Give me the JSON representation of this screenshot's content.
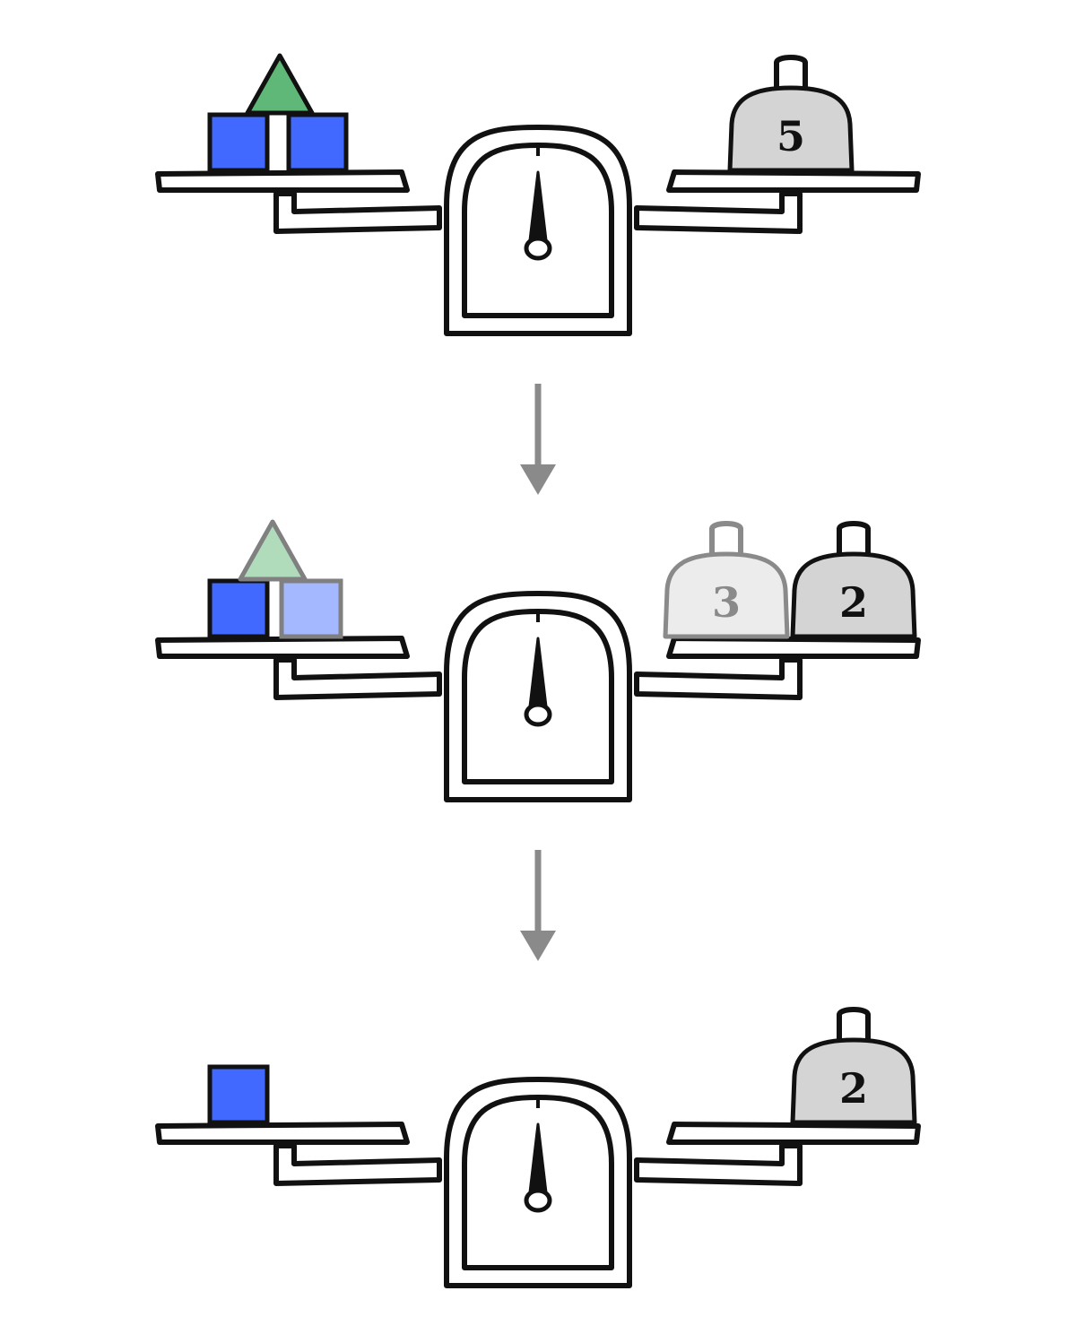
{
  "colors": {
    "block": "#4169ff",
    "block_faded": "#a3b8ff",
    "triangle": "#5fb877",
    "triangle_faded": "#b0dcbc",
    "weight": "#d4d4d4",
    "weight_faded": "#ececec",
    "arrow": "#8a8a8a",
    "ink": "#111111"
  },
  "stages": [
    {
      "left_pan": {
        "blocks": [
          "solid",
          "solid"
        ],
        "triangle": "solid"
      },
      "right_pan": {
        "weights": [
          {
            "label": "5",
            "state": "solid"
          }
        ]
      }
    },
    {
      "left_pan": {
        "blocks": [
          "solid",
          "faded"
        ],
        "triangle": "faded"
      },
      "right_pan": {
        "weights": [
          {
            "label": "3",
            "state": "faded"
          },
          {
            "label": "2",
            "state": "solid"
          }
        ]
      }
    },
    {
      "left_pan": {
        "blocks": [
          "solid"
        ],
        "triangle": "none"
      },
      "right_pan": {
        "weights": [
          {
            "label": "2",
            "state": "solid"
          }
        ]
      }
    }
  ],
  "arrows": [
    {
      "icon": "down-arrow-icon"
    },
    {
      "icon": "down-arrow-icon"
    }
  ]
}
